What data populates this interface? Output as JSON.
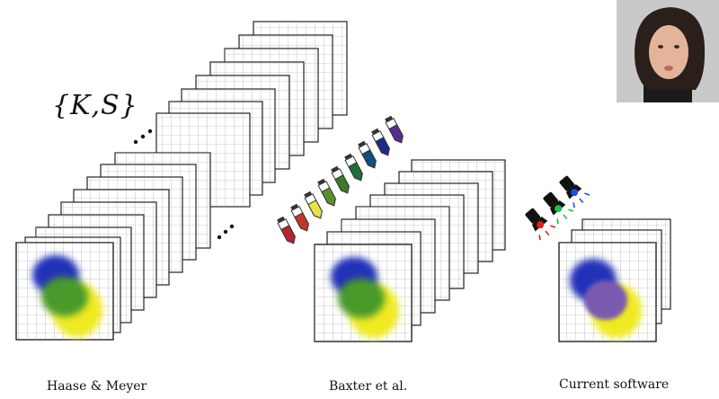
{
  "notation": "{K,S}",
  "captions": {
    "haase_meyer": "Haase & Meyer",
    "baxter": "Baxter et al.",
    "current": "Current software"
  },
  "paint_tube_colors": [
    "#b3262c",
    "#c0392b",
    "#e8e24a",
    "#5a8f2e",
    "#3d7a2a",
    "#1f6e3a",
    "#0f4f7a",
    "#1d2a8a",
    "#5a2a8f"
  ],
  "flashlight_colors": [
    "#e02020",
    "#20c040",
    "#2050e0"
  ],
  "blob_colors": {
    "blue": "#2230b8",
    "green": "#4a9a2a",
    "yellow": "#f0ea20",
    "purple": "#7a5ab0"
  }
}
